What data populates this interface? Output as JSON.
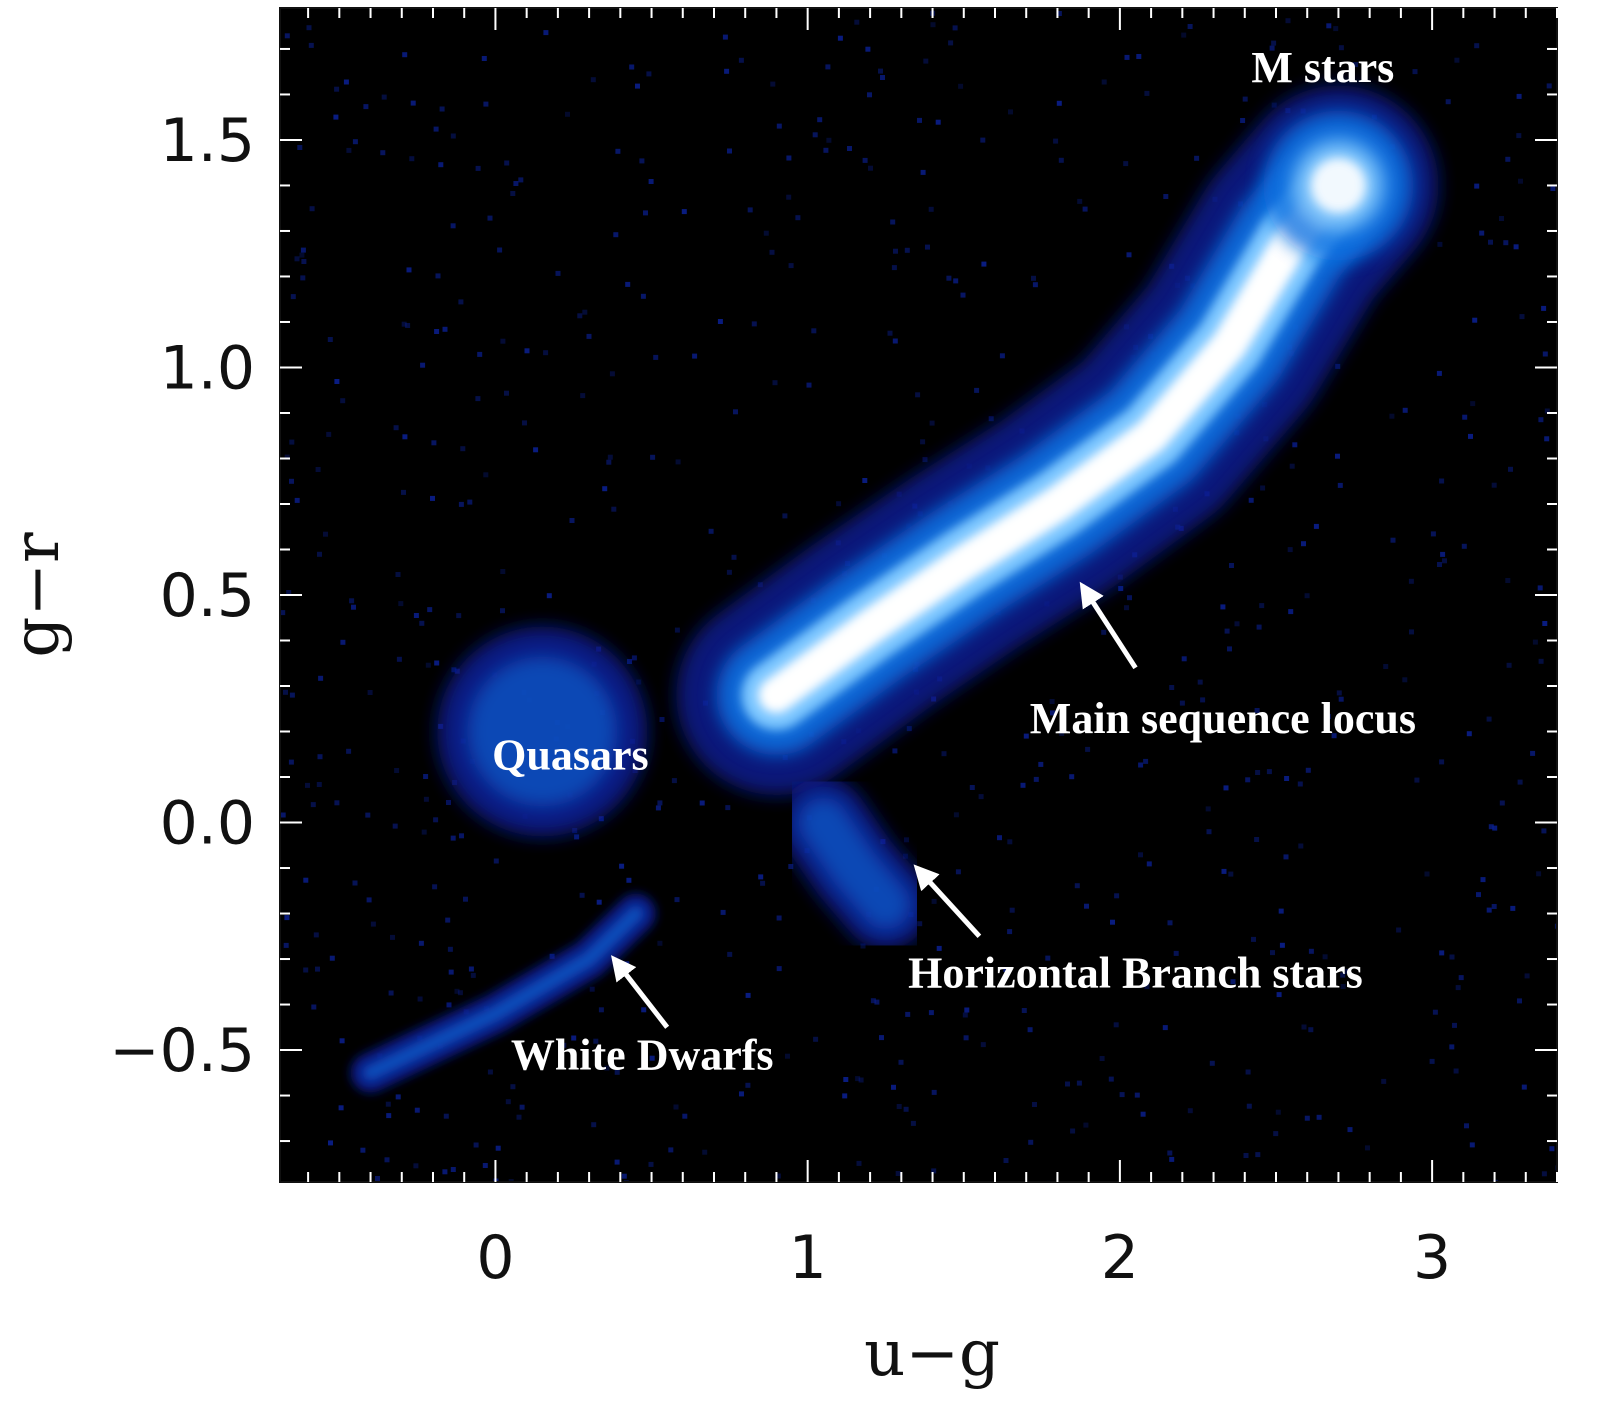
{
  "chart_data": {
    "type": "heatmap",
    "title": "",
    "xlabel": "u−g",
    "ylabel": "g−r",
    "xlim": [
      -0.69,
      3.4
    ],
    "ylim": [
      -0.79,
      1.79
    ],
    "x_ticks": [
      0,
      1,
      2,
      3
    ],
    "x_tick_labels": [
      "0",
      "1",
      "2",
      "3"
    ],
    "y_ticks": [
      -0.5,
      0.0,
      0.5,
      1.0,
      1.5
    ],
    "y_tick_labels": [
      "−0.5",
      "0.0",
      "0.5",
      "1.0",
      "1.5"
    ],
    "grid": false,
    "legend": "none",
    "colors": {
      "background": "#000000",
      "low": "#0a1f8f",
      "mid": "#0a6fe0",
      "high": "#ffffff"
    },
    "series": [
      {
        "name": "Main sequence locus",
        "points": [
          [
            0.9,
            0.28
          ],
          [
            1.2,
            0.43
          ],
          [
            1.5,
            0.57
          ],
          [
            1.8,
            0.7
          ],
          [
            2.1,
            0.85
          ],
          [
            2.35,
            1.05
          ],
          [
            2.55,
            1.28
          ],
          [
            2.7,
            1.4
          ]
        ],
        "peak_density": 1.0
      },
      {
        "name": "M stars",
        "points": [
          [
            2.7,
            1.4
          ]
        ],
        "peak_density": 0.95
      },
      {
        "name": "Quasars",
        "points": [
          [
            0.15,
            0.2
          ]
        ],
        "peak_density": 0.55
      },
      {
        "name": "White Dwarfs",
        "points": [
          [
            -0.4,
            -0.55
          ],
          [
            0.0,
            -0.42
          ],
          [
            0.3,
            -0.3
          ],
          [
            0.45,
            -0.2
          ]
        ],
        "peak_density": 0.45
      },
      {
        "name": "Horizontal Branch stars",
        "points": [
          [
            1.05,
            0.0
          ],
          [
            1.15,
            -0.1
          ],
          [
            1.25,
            -0.18
          ]
        ],
        "peak_density": 0.5
      }
    ],
    "annotations": [
      {
        "text": "M stars",
        "x": 2.65,
        "y": 1.66
      },
      {
        "text": "Quasars",
        "x": 0.24,
        "y": 0.15
      },
      {
        "text": "Main sequence locus",
        "x": 2.33,
        "y": 0.23,
        "arrow_to": [
          1.88,
          0.52
        ]
      },
      {
        "text": "Horizontal Branch stars",
        "x": 2.05,
        "y": -0.33,
        "arrow_to": [
          1.35,
          -0.1
        ]
      },
      {
        "text": "White Dwarfs",
        "x": 0.47,
        "y": -0.51,
        "arrow_to": [
          0.38,
          -0.3
        ]
      }
    ]
  }
}
